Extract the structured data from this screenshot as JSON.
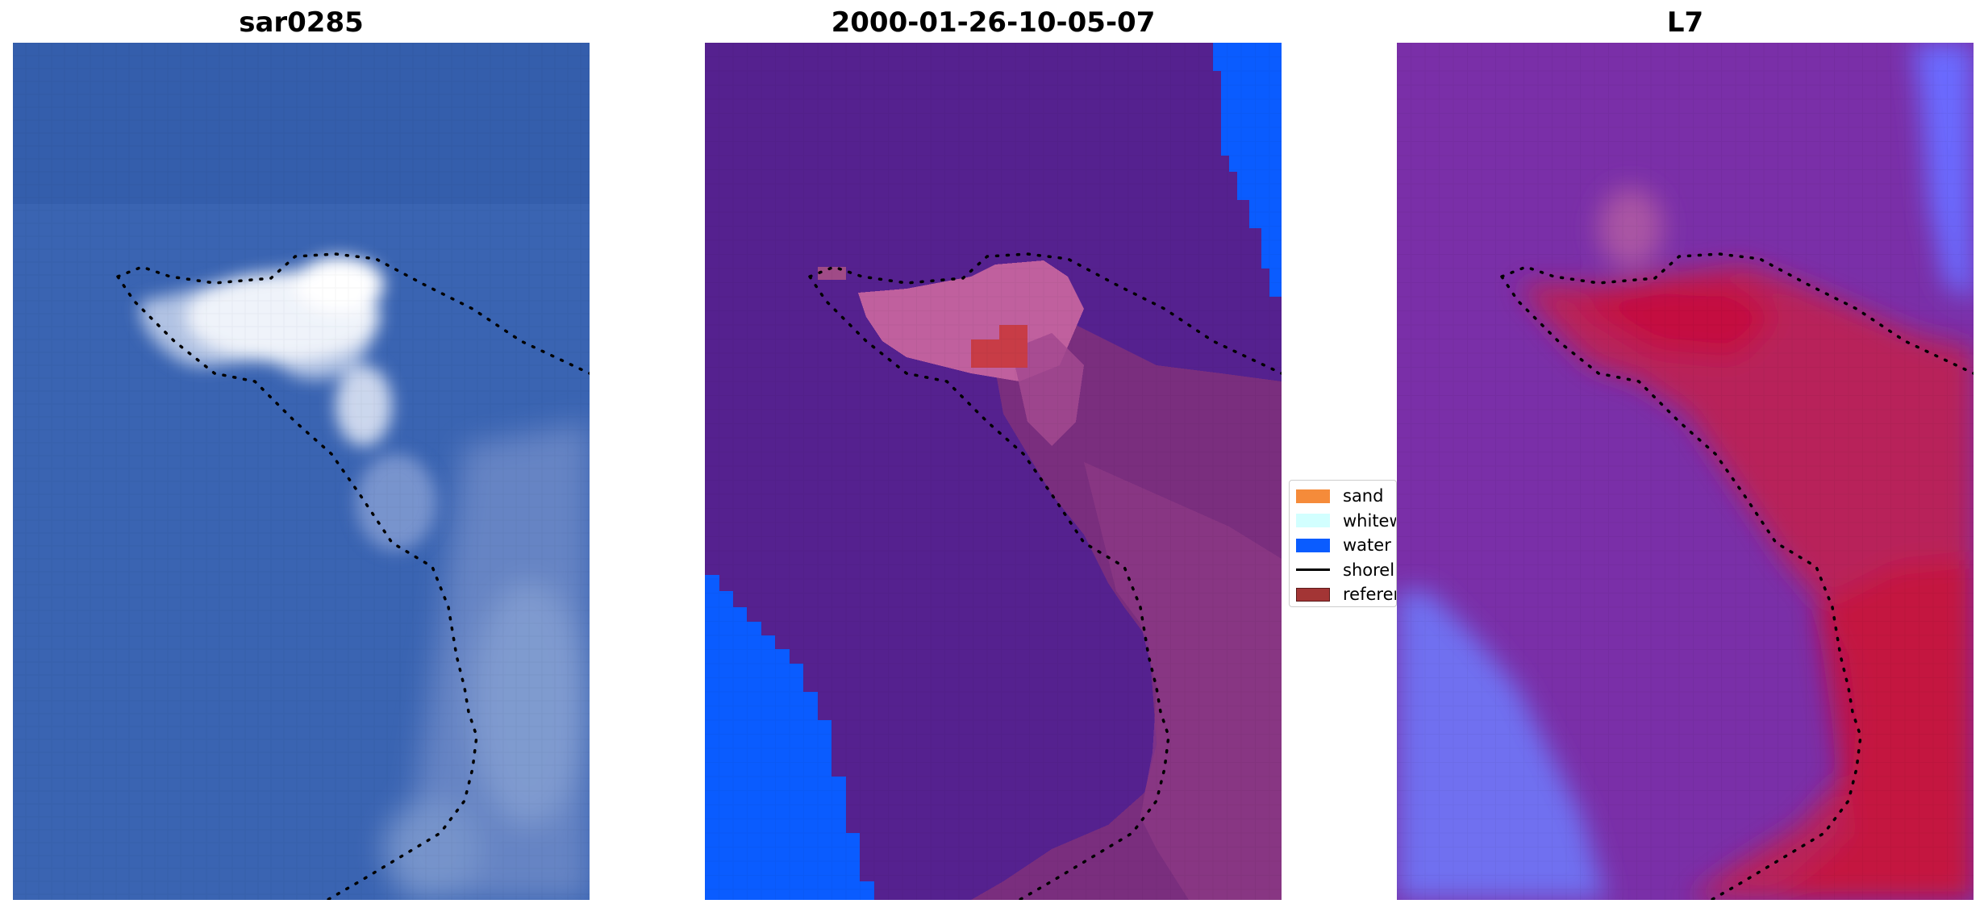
{
  "panels": {
    "p1": {
      "title": "sar0285"
    },
    "p2": {
      "title": "2000-01-26-10-05-07"
    },
    "p3": {
      "title": "L7"
    }
  },
  "legend": {
    "items": [
      {
        "label": "sand",
        "color": "#f58b3a",
        "kind": "patch"
      },
      {
        "label": "whitewater",
        "color": "#d2ffff",
        "kind": "patch"
      },
      {
        "label": "water",
        "color": "#0a5cff",
        "kind": "patch"
      },
      {
        "label": "shoreline",
        "color": "#000000",
        "kind": "line"
      },
      {
        "label": "reference shoreline",
        "color": "#a33535",
        "kind": "patch"
      }
    ]
  },
  "colors": {
    "rgb_ocean": "#3b64b3",
    "rgb_foam": "#e8eef6",
    "class_land": "#55218f",
    "class_water": "#0a5cff",
    "class_mixed": "#7a2e7e",
    "class_spit": "#c0609e",
    "class_reference": "#c83c46",
    "index_low": "#6b6bff",
    "index_mid": "#7a2fa8",
    "index_high": "#c5103c"
  }
}
